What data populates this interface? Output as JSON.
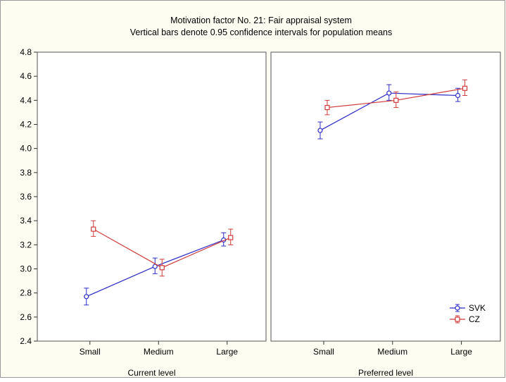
{
  "chart_data": {
    "type": "line",
    "title": "Motivation factor No. 21:  Fair appraisal system",
    "subtitle": "Vertical bars denote 0.95 confidence intervals for population means",
    "ylim": [
      2.4,
      4.8
    ],
    "yticks": [
      2.4,
      2.6,
      2.8,
      3.0,
      3.2,
      3.4,
      3.6,
      3.8,
      4.0,
      4.2,
      4.4,
      4.6,
      4.8
    ],
    "ytick_labels": [
      "2.4",
      "2.6",
      "2.8",
      "3.0",
      "3.2",
      "3.4",
      "3.6",
      "3.8",
      "4.0",
      "4.2",
      "4.4",
      "4.6",
      "4.8"
    ],
    "categories": [
      "Small",
      "Medium",
      "Large"
    ],
    "grid": false,
    "legend_position": "bottom-right",
    "series_style": [
      {
        "color": "#2b2bc8",
        "marker": "circle"
      },
      {
        "color": "#d03a3a",
        "marker": "square"
      }
    ],
    "legend": [
      "SVK",
      "CZ"
    ],
    "panels": [
      {
        "xlabel": "Current level",
        "series": [
          {
            "name": "SVK",
            "values": [
              2.77,
              3.02,
              3.24
            ],
            "lower": [
              2.7,
              2.96,
              3.19
            ],
            "upper": [
              2.84,
              3.09,
              3.3
            ]
          },
          {
            "name": "CZ",
            "values": [
              3.33,
              3.01,
              3.26
            ],
            "lower": [
              3.27,
              2.94,
              3.2
            ],
            "upper": [
              3.4,
              3.08,
              3.33
            ]
          }
        ]
      },
      {
        "xlabel": "Preferred level",
        "series": [
          {
            "name": "SVK",
            "values": [
              4.15,
              4.46,
              4.44
            ],
            "lower": [
              4.08,
              4.4,
              4.39
            ],
            "upper": [
              4.22,
              4.53,
              4.5
            ]
          },
          {
            "name": "CZ",
            "values": [
              4.34,
              4.4,
              4.5
            ],
            "lower": [
              4.28,
              4.34,
              4.44
            ],
            "upper": [
              4.4,
              4.47,
              4.57
            ]
          }
        ]
      }
    ]
  }
}
